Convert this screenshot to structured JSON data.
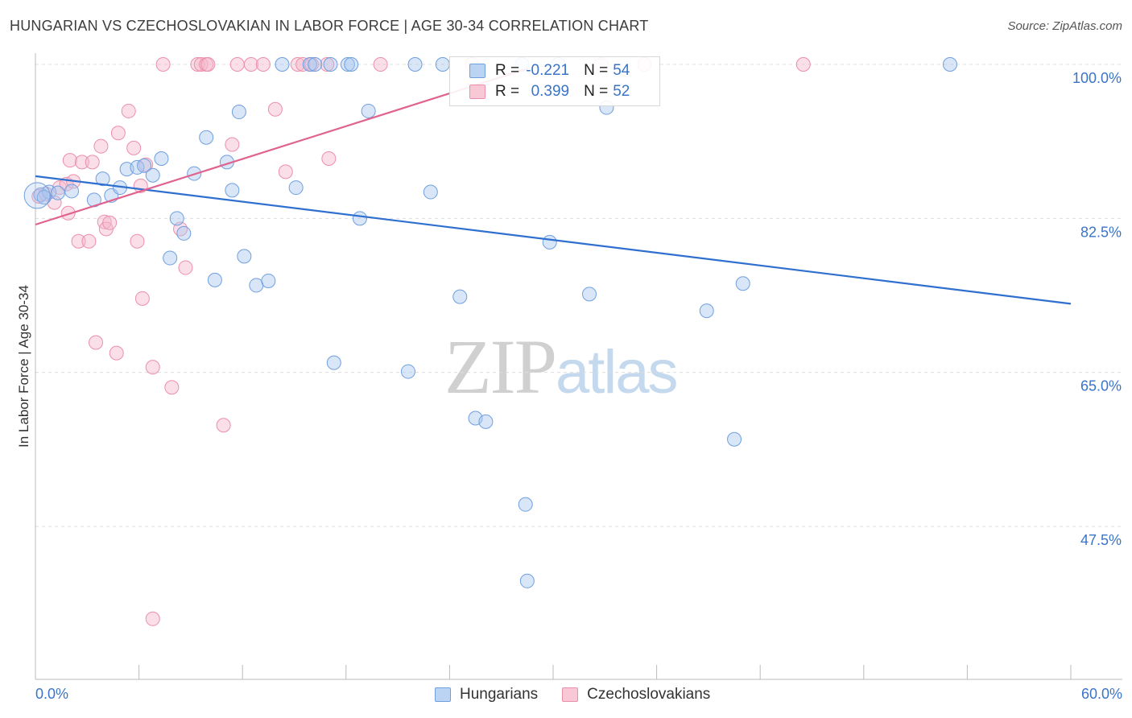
{
  "header": {
    "title": "HUNGARIAN VS CZECHOSLOVAKIAN IN LABOR FORCE | AGE 30-34 CORRELATION CHART",
    "source": "Source: ZipAtlas.com"
  },
  "watermark": {
    "zip": "ZIP",
    "atlas": "atlas"
  },
  "colors": {
    "hungarian_fill": "#a9c7f0",
    "hungarian_stroke": "#6f9fe0",
    "hungarian_line": "#2f6fcf",
    "czech_fill": "#f5b8cb",
    "czech_stroke": "#ec8fab",
    "czech_line": "#e0628f",
    "tick_text": "#3a74c8",
    "grid": "#dddddd"
  },
  "legend": {
    "rows": [
      {
        "r_label": "R =",
        "r_value": "-0.221",
        "n_label": "N =",
        "n_value": "54"
      },
      {
        "r_label": "R =",
        "r_value": "0.399",
        "n_label": "N =",
        "n_value": "52"
      }
    ],
    "bottom": [
      "Hungarians",
      "Czechoslovakians"
    ]
  },
  "chart_data": {
    "type": "scatter",
    "title": "HUNGARIAN VS CZECHOSLOVAKIAN IN LABOR FORCE | AGE 30-34 CORRELATION CHART",
    "xlabel": "",
    "ylabel": "In Labor Force | Age 30-34",
    "xlim": [
      0,
      60
    ],
    "ylim": [
      32,
      102
    ],
    "x_tick_labels": [
      "0.0%",
      "60.0%"
    ],
    "y_ticks": [
      47.5,
      65.0,
      82.5,
      100.0
    ],
    "y_tick_labels": [
      "47.5%",
      "65.0%",
      "82.5%",
      "100.0%"
    ],
    "series": [
      {
        "name": "Hungarians",
        "R": -0.221,
        "N": 54,
        "trend": {
          "x": [
            0,
            60
          ],
          "y": [
            87.3,
            72.8
          ]
        },
        "points": [
          [
            0.3,
            85.2
          ],
          [
            0.8,
            85.5
          ],
          [
            1.3,
            85.4
          ],
          [
            2.1,
            85.6
          ],
          [
            3.4,
            84.6
          ],
          [
            3.9,
            87.0
          ],
          [
            4.4,
            85.1
          ],
          [
            4.9,
            86.0
          ],
          [
            5.3,
            88.1
          ],
          [
            5.9,
            88.3
          ],
          [
            6.3,
            88.5
          ],
          [
            6.8,
            87.4
          ],
          [
            7.3,
            89.3
          ],
          [
            7.8,
            78.0
          ],
          [
            8.2,
            82.5
          ],
          [
            8.6,
            80.8
          ],
          [
            9.2,
            87.6
          ],
          [
            9.9,
            91.7
          ],
          [
            10.4,
            75.5
          ],
          [
            11.1,
            88.9
          ],
          [
            11.4,
            85.7
          ],
          [
            11.8,
            94.6
          ],
          [
            12.1,
            78.2
          ],
          [
            12.8,
            74.9
          ],
          [
            13.5,
            75.4
          ],
          [
            14.3,
            100.0
          ],
          [
            15.1,
            86.0
          ],
          [
            15.9,
            100.0
          ],
          [
            16.2,
            100.0
          ],
          [
            17.1,
            100.0
          ],
          [
            17.3,
            66.1
          ],
          [
            18.1,
            100.0
          ],
          [
            18.3,
            100.0
          ],
          [
            18.8,
            82.5
          ],
          [
            19.3,
            94.7
          ],
          [
            21.6,
            65.1
          ],
          [
            22.0,
            100.0
          ],
          [
            22.9,
            85.5
          ],
          [
            23.6,
            100.0
          ],
          [
            24.6,
            73.6
          ],
          [
            25.5,
            59.8
          ],
          [
            26.1,
            59.4
          ],
          [
            28.4,
            50.0
          ],
          [
            28.5,
            41.3
          ],
          [
            29.8,
            79.8
          ],
          [
            30.3,
            100.0
          ],
          [
            32.1,
            73.9
          ],
          [
            33.1,
            95.1
          ],
          [
            38.9,
            72.0
          ],
          [
            40.5,
            57.4
          ],
          [
            41.0,
            75.1
          ],
          [
            53.0,
            100.0
          ],
          [
            28.2,
            100.0
          ],
          [
            0.5,
            84.9
          ]
        ]
      },
      {
        "name": "Czechoslovakians",
        "R": 0.399,
        "N": 52,
        "trend": {
          "x": [
            0,
            28.5
          ],
          "y": [
            81.8,
            99.5
          ]
        },
        "points": [
          [
            0.2,
            85.0
          ],
          [
            0.6,
            85.3
          ],
          [
            1.1,
            84.3
          ],
          [
            1.4,
            86.0
          ],
          [
            1.8,
            86.4
          ],
          [
            1.9,
            83.1
          ],
          [
            2.0,
            89.1
          ],
          [
            2.2,
            86.7
          ],
          [
            2.5,
            79.9
          ],
          [
            2.7,
            88.9
          ],
          [
            3.1,
            79.9
          ],
          [
            3.3,
            88.9
          ],
          [
            3.5,
            68.4
          ],
          [
            3.8,
            90.7
          ],
          [
            4.0,
            82.1
          ],
          [
            4.1,
            81.3
          ],
          [
            4.3,
            82.0
          ],
          [
            4.7,
            67.2
          ],
          [
            4.8,
            92.2
          ],
          [
            5.4,
            94.7
          ],
          [
            5.7,
            90.5
          ],
          [
            5.9,
            79.9
          ],
          [
            6.1,
            86.2
          ],
          [
            6.2,
            73.4
          ],
          [
            6.4,
            88.6
          ],
          [
            6.8,
            65.6
          ],
          [
            6.8,
            37.0
          ],
          [
            7.4,
            100.0
          ],
          [
            7.9,
            63.3
          ],
          [
            8.4,
            81.3
          ],
          [
            8.7,
            76.9
          ],
          [
            9.4,
            100.0
          ],
          [
            9.6,
            100.0
          ],
          [
            9.9,
            100.0
          ],
          [
            10.0,
            100.0
          ],
          [
            10.9,
            59.0
          ],
          [
            11.4,
            90.9
          ],
          [
            11.7,
            100.0
          ],
          [
            12.5,
            100.0
          ],
          [
            13.2,
            100.0
          ],
          [
            13.9,
            94.9
          ],
          [
            14.5,
            87.8
          ],
          [
            15.2,
            100.0
          ],
          [
            15.5,
            100.0
          ],
          [
            16.0,
            100.0
          ],
          [
            16.9,
            100.0
          ],
          [
            17.0,
            89.3
          ],
          [
            20.0,
            100.0
          ],
          [
            25.3,
            100.0
          ],
          [
            32.8,
            100.0
          ],
          [
            35.3,
            100.0
          ],
          [
            44.5,
            100.0
          ]
        ]
      }
    ]
  }
}
